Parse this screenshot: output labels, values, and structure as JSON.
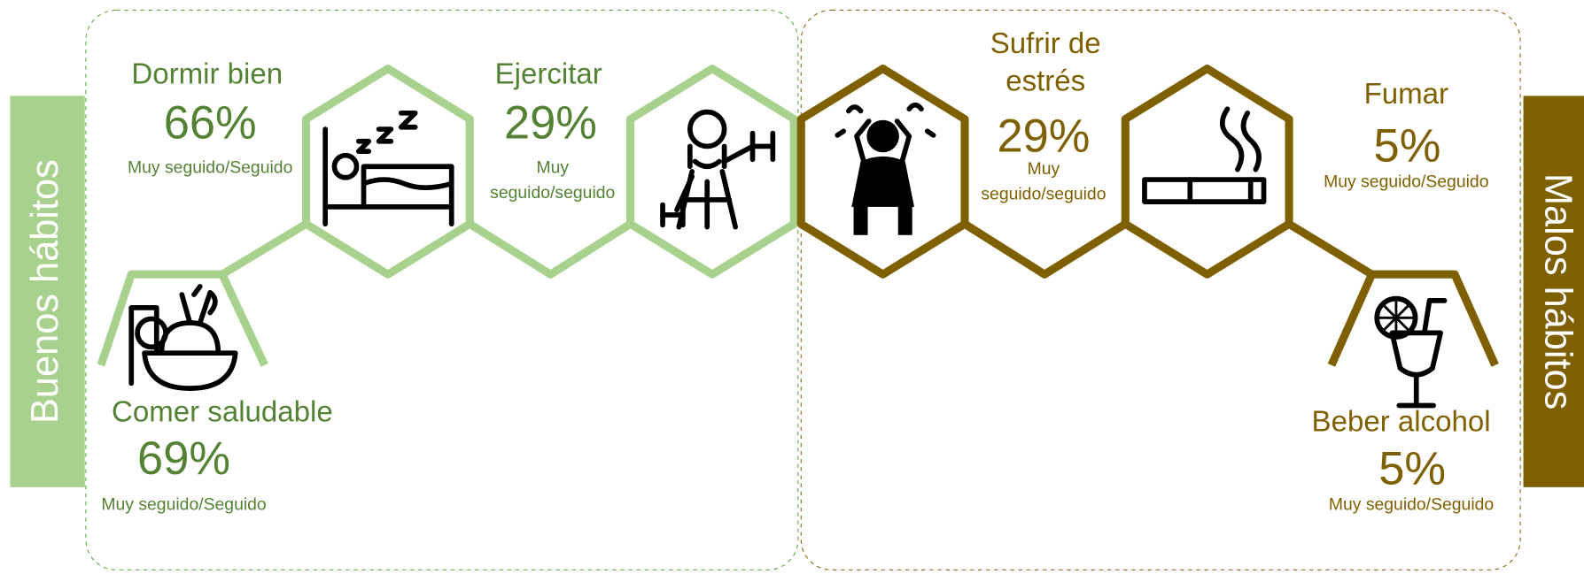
{
  "sides": {
    "left": "Buenos hábitos",
    "right": "Malos hábitos"
  },
  "habits": [
    {
      "name": [
        "Dormir bien"
      ],
      "percent": "66%",
      "note": [
        "Muy seguido/Seguido"
      ]
    },
    {
      "name": [
        "Ejercitar"
      ],
      "percent": "29%",
      "note": [
        "Muy",
        "seguido/seguido"
      ]
    },
    {
      "name": [
        "Comer saludable"
      ],
      "percent": "69%",
      "note": [
        "Muy seguido/Seguido"
      ]
    },
    {
      "name": [
        "Sufrir de",
        "estrés"
      ],
      "percent": "29%",
      "note": [
        "Muy",
        "seguido/seguido"
      ]
    },
    {
      "name": [
        "Fumar"
      ],
      "percent": "5%",
      "note": [
        "Muy seguido/Seguido"
      ]
    },
    {
      "name": [
        "Beber alcohol"
      ],
      "percent": "5%",
      "note": [
        "Muy seguido/Seguido"
      ]
    }
  ]
}
